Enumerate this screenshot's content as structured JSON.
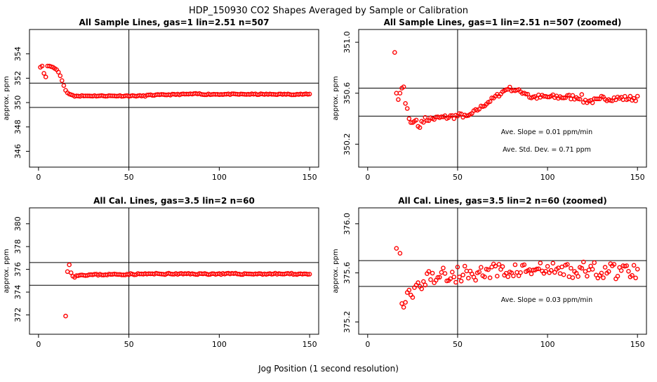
{
  "page_title": "HDP_150930  CO2 Shapes Averaged by Sample or Calibration",
  "x_axis_label": "Jog Position (1 second resolution)",
  "chart_data": [
    {
      "type": "scatter",
      "title": "All Sample Lines, gas=1 lin=2.51 n=507",
      "ylabel": "approx. ppm",
      "xlim": [
        -5,
        155
      ],
      "ylim": [
        344.7,
        356.0
      ],
      "xticks": [
        0,
        50,
        100,
        150
      ],
      "yticks": [
        346,
        348,
        350,
        352,
        354
      ],
      "vline": 50,
      "hlines": [
        351.6,
        349.6
      ],
      "annotations": [],
      "color": "#ff0000",
      "profile": "sample_full"
    },
    {
      "type": "scatter",
      "title": "All Sample Lines, gas=1 lin=2.51 n=507 (zoomed)",
      "ylabel": "approx. ppm",
      "xlim": [
        -5,
        155
      ],
      "ylim": [
        350.02,
        351.1
      ],
      "xticks": [
        0,
        50,
        100,
        150
      ],
      "yticks": [
        350.2,
        350.6,
        351.0
      ],
      "ytick_labels": [
        "350.2",
        "350.6",
        "351.0"
      ],
      "vline": 50,
      "hlines": [
        350.64,
        350.42
      ],
      "annotations": [
        "Ave. Slope =  0.01  ppm/min",
        "Ave. Std. Dev. =  0.71  ppm"
      ],
      "color": "#ff0000",
      "profile": "sample_zoom"
    },
    {
      "type": "scatter",
      "title": "All Cal. Lines, gas=3.5 lin=2 n=60",
      "ylabel": "approx. ppm",
      "xlim": [
        -5,
        155
      ],
      "ylim": [
        370.3,
        381.4
      ],
      "xticks": [
        0,
        50,
        100,
        150
      ],
      "yticks": [
        372,
        374,
        376,
        378,
        380
      ],
      "vline": 50,
      "hlines": [
        376.6,
        374.6
      ],
      "annotations": [],
      "color": "#ff0000",
      "profile": "cal_full"
    },
    {
      "type": "scatter",
      "title": "All Cal. Lines, gas=3.5 lin=2 n=60 (zoomed)",
      "ylabel": "approx. ppm",
      "xlim": [
        -5,
        155
      ],
      "ylim": [
        375.1,
        376.13
      ],
      "xticks": [
        0,
        50,
        100,
        150
      ],
      "yticks": [
        375.2,
        375.6,
        376.0
      ],
      "ytick_labels": [
        "375.2",
        "375.6",
        "376.0"
      ],
      "vline": 50,
      "hlines": [
        375.7,
        375.49
      ],
      "annotations": [
        "Ave. Slope =  0.03  ppm/min"
      ],
      "color": "#ff0000",
      "profile": "cal_zoom"
    }
  ]
}
